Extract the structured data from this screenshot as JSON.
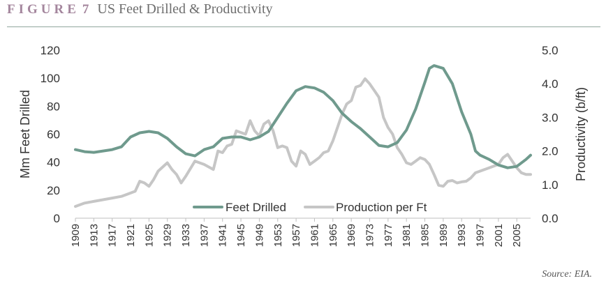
{
  "header": {
    "figure_label": "FIGURE",
    "figure_number": "7",
    "title": "US Feet Drilled & Productivity"
  },
  "source": "Source: EIA.",
  "chart_data": {
    "type": "line",
    "x_start": 1909,
    "x_end": 2008,
    "x_tick_labels": [
      "1909",
      "1913",
      "1917",
      "1921",
      "1925",
      "1929",
      "1933",
      "1937",
      "1941",
      "1945",
      "1949",
      "1953",
      "1957",
      "1961",
      "1965",
      "1969",
      "1973",
      "1977",
      "1981",
      "1985",
      "1989",
      "1993",
      "1997",
      "2001",
      "2005"
    ],
    "ylabel_left": "Mm Feet Drilled",
    "ylabel_right": "Productivity (b/ft)",
    "ylim_left": [
      0,
      120
    ],
    "ylim_right": [
      0,
      5
    ],
    "y_ticks_left": [
      "0",
      "20",
      "40",
      "60",
      "80",
      "100",
      "120"
    ],
    "y_ticks_right": [
      "0.0",
      "1.0",
      "2.0",
      "3.0",
      "4.0",
      "5.0"
    ],
    "grid": false,
    "legend_position": "bottom-center",
    "series": [
      {
        "name": "Feet Drilled",
        "axis": "left",
        "color": "#6f9a8d",
        "points": [
          [
            1909,
            49
          ],
          [
            1911,
            47.5
          ],
          [
            1913,
            47
          ],
          [
            1915,
            48
          ],
          [
            1917,
            49
          ],
          [
            1919,
            51
          ],
          [
            1921,
            58
          ],
          [
            1923,
            61
          ],
          [
            1925,
            62
          ],
          [
            1927,
            61
          ],
          [
            1929,
            57
          ],
          [
            1931,
            51
          ],
          [
            1933,
            46
          ],
          [
            1935,
            44.5
          ],
          [
            1937,
            49
          ],
          [
            1939,
            51
          ],
          [
            1941,
            57
          ],
          [
            1943,
            58
          ],
          [
            1945,
            58
          ],
          [
            1947,
            56
          ],
          [
            1949,
            58
          ],
          [
            1951,
            62
          ],
          [
            1953,
            72
          ],
          [
            1955,
            82
          ],
          [
            1957,
            91
          ],
          [
            1959,
            94
          ],
          [
            1961,
            93
          ],
          [
            1963,
            90
          ],
          [
            1965,
            84
          ],
          [
            1967,
            75
          ],
          [
            1969,
            69
          ],
          [
            1971,
            64
          ],
          [
            1973,
            58
          ],
          [
            1975,
            52
          ],
          [
            1977,
            51
          ],
          [
            1979,
            54
          ],
          [
            1981,
            63
          ],
          [
            1983,
            78
          ],
          [
            1985,
            97
          ],
          [
            1986,
            107
          ],
          [
            1987,
            109
          ],
          [
            1989,
            107
          ],
          [
            1991,
            96
          ],
          [
            1993,
            76
          ],
          [
            1995,
            60
          ],
          [
            1996,
            48
          ],
          [
            1997,
            45
          ],
          [
            1999,
            42
          ],
          [
            2001,
            38
          ],
          [
            2003,
            36
          ],
          [
            2005,
            37
          ],
          [
            2007,
            42
          ],
          [
            2008,
            45
          ]
        ]
      },
      {
        "name": "Production per Ft",
        "axis": "right",
        "color": "#c6c6c6",
        "points": [
          [
            1909,
            0.35
          ],
          [
            1911,
            0.45
          ],
          [
            1913,
            0.5
          ],
          [
            1915,
            0.55
          ],
          [
            1917,
            0.6
          ],
          [
            1919,
            0.65
          ],
          [
            1921,
            0.75
          ],
          [
            1922,
            0.8
          ],
          [
            1923,
            1.1
          ],
          [
            1924,
            1.05
          ],
          [
            1925,
            0.95
          ],
          [
            1926,
            1.15
          ],
          [
            1927,
            1.4
          ],
          [
            1929,
            1.65
          ],
          [
            1930,
            1.45
          ],
          [
            1931,
            1.3
          ],
          [
            1932,
            1.05
          ],
          [
            1933,
            1.25
          ],
          [
            1935,
            1.7
          ],
          [
            1937,
            1.6
          ],
          [
            1939,
            1.45
          ],
          [
            1940,
            2.0
          ],
          [
            1941,
            1.95
          ],
          [
            1942,
            2.15
          ],
          [
            1943,
            2.2
          ],
          [
            1944,
            2.6
          ],
          [
            1945,
            2.55
          ],
          [
            1946,
            2.5
          ],
          [
            1947,
            2.9
          ],
          [
            1948,
            2.6
          ],
          [
            1949,
            2.45
          ],
          [
            1950,
            2.8
          ],
          [
            1951,
            2.9
          ],
          [
            1952,
            2.6
          ],
          [
            1953,
            2.1
          ],
          [
            1954,
            2.15
          ],
          [
            1955,
            2.1
          ],
          [
            1956,
            1.7
          ],
          [
            1957,
            1.55
          ],
          [
            1958,
            2.0
          ],
          [
            1959,
            1.9
          ],
          [
            1960,
            1.6
          ],
          [
            1961,
            1.7
          ],
          [
            1962,
            1.8
          ],
          [
            1963,
            1.95
          ],
          [
            1964,
            2.0
          ],
          [
            1965,
            2.3
          ],
          [
            1966,
            2.7
          ],
          [
            1967,
            3.1
          ],
          [
            1968,
            3.4
          ],
          [
            1969,
            3.5
          ],
          [
            1970,
            3.9
          ],
          [
            1971,
            3.95
          ],
          [
            1972,
            4.15
          ],
          [
            1973,
            4.0
          ],
          [
            1974,
            3.8
          ],
          [
            1975,
            3.6
          ],
          [
            1976,
            3.0
          ],
          [
            1977,
            2.7
          ],
          [
            1978,
            2.5
          ],
          [
            1979,
            2.1
          ],
          [
            1980,
            1.9
          ],
          [
            1981,
            1.65
          ],
          [
            1982,
            1.6
          ],
          [
            1983,
            1.7
          ],
          [
            1984,
            1.8
          ],
          [
            1985,
            1.75
          ],
          [
            1986,
            1.6
          ],
          [
            1987,
            1.3
          ],
          [
            1988,
            0.98
          ],
          [
            1989,
            0.95
          ],
          [
            1990,
            1.1
          ],
          [
            1991,
            1.12
          ],
          [
            1992,
            1.05
          ],
          [
            1993,
            1.08
          ],
          [
            1994,
            1.1
          ],
          [
            1995,
            1.2
          ],
          [
            1996,
            1.35
          ],
          [
            1997,
            1.4
          ],
          [
            1998,
            1.45
          ],
          [
            1999,
            1.5
          ],
          [
            2000,
            1.55
          ],
          [
            2001,
            1.6
          ],
          [
            2002,
            1.8
          ],
          [
            2003,
            1.9
          ],
          [
            2004,
            1.7
          ],
          [
            2005,
            1.5
          ],
          [
            2006,
            1.35
          ],
          [
            2007,
            1.3
          ],
          [
            2008,
            1.3
          ]
        ]
      }
    ]
  }
}
